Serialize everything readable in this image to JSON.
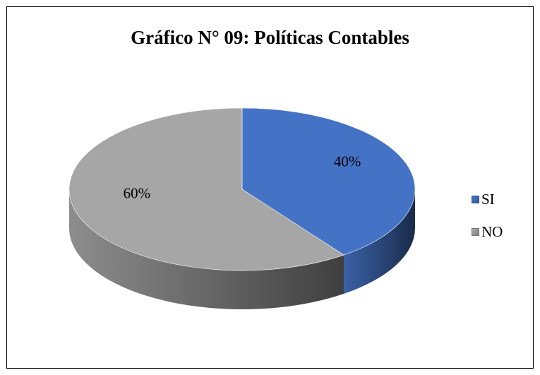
{
  "chart_data": {
    "type": "pie",
    "title": "Gráfico N° 09: Políticas Contables",
    "categories": [
      "SI",
      "NO"
    ],
    "values": [
      40,
      60
    ],
    "data_labels": [
      "40%",
      "60%"
    ],
    "colors": [
      "#4472C4",
      "#A6A6A6"
    ],
    "legend_position": "right",
    "style": "3d"
  }
}
